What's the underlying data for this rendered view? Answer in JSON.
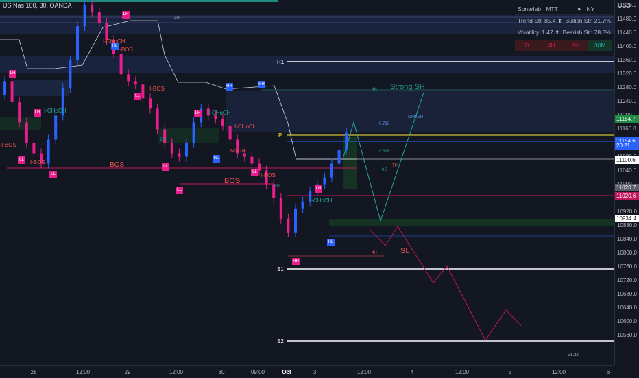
{
  "symbol": "US Nas 100, 30, OANDA",
  "currency": "USD",
  "price_ticks": [
    "11520.0",
    "11480.0",
    "11440.0",
    "11400.0",
    "11360.0",
    "11320.0",
    "11280.0",
    "11240.0",
    "11200.0",
    "11160.0",
    "11120.0",
    "11080.0",
    "11040.0",
    "11000.0",
    "10960.0",
    "10920.0",
    "10880.0",
    "10840.0",
    "10800.0",
    "10760.0",
    "10720.0",
    "10680.0",
    "10640.0",
    "10600.0",
    "10560.0"
  ],
  "price_labels": [
    {
      "text": "11184.7",
      "bg": "#1e8a42",
      "fg": "#ffffff"
    },
    {
      "text": "11154.6",
      "bg": "#2962ff",
      "fg": "#ffffff"
    },
    {
      "text": "20:21",
      "bg": "#2962ff",
      "fg": "#ffffff"
    },
    {
      "text": "11100.6",
      "bg": "#ffffff",
      "fg": "#131722"
    },
    {
      "text": "11020.7",
      "bg": "#5d606b",
      "fg": "#ffffff"
    },
    {
      "text": "11020.6",
      "bg": "#c2185b",
      "fg": "#ffffff"
    },
    {
      "text": "10934.4",
      "bg": "#ffffff",
      "fg": "#131722"
    }
  ],
  "time_ticks": [
    "28",
    "12:00",
    "29",
    "12:00",
    "30",
    "09:00",
    "Oct",
    "3",
    "12:00",
    "4",
    "12:00",
    "5",
    "12:00",
    "6"
  ],
  "stats": {
    "row1": [
      "Sonarlab",
      "MTT",
      "",
      "NY"
    ],
    "row2": [
      "Trend Str",
      "85.4 ⬆",
      "Bullish Str",
      "21.7%"
    ],
    "row3": [
      "Volatility",
      "1.47 ⬆",
      "Bearish Str",
      "78.3%"
    ],
    "timeframes": [
      "D",
      "4H",
      "1H",
      "30M"
    ]
  },
  "levels": {
    "r1": "R1",
    "s1": "S1",
    "s2": "S2",
    "p": "P"
  },
  "annotations": {
    "strong_sh": "Strong SH",
    "bos_big": "BOS",
    "bos_left": "BOS",
    "sl": "SL",
    "ichoch_top": "I-CHoCH",
    "ibos_top": "I-BOS",
    "ibos_left": "I-BOS",
    "ibos_left2": "I-BOS",
    "ichoch_left": "I-CHoCH",
    "ichoch_mid": "I-CHoCH",
    "ichoch_mid2": "I-CHoCH",
    "ibos_mid": "I-BOS",
    "ibos_mid2": "I-BOS",
    "ichoch_right": "I-CHoCH",
    "bos_small": "BOS (H)",
    "ep": "EP",
    "ep2": "EP",
    "fib_786": "0.786",
    "fib_618": "0.618",
    "fib_5": "0.5",
    "tp": "TP",
    "tf_4h": "4H",
    "tf_4h2": "4H",
    "tf_4h3": "4H",
    "choch_right": "CHOCH"
  },
  "swings": {
    "lh": "LH",
    "hh": "HH",
    "hl": "HL",
    "ll": "LL",
    "lh2": "LH",
    "ll2": "LL",
    "lh3": "LH",
    "hl2": "HL",
    "hh2": "HH",
    "hh3": "HH",
    "ll3": "LL",
    "lh4": "LH",
    "ll4": "LL",
    "lh5": "LH",
    "hl3": "HL",
    "ll5": "LL",
    "ll6": "LL"
  },
  "version": "V1.22",
  "chart_data": {
    "type": "candlestick",
    "instrument": "US Nas 100",
    "timeframe": "30",
    "ylim": [
      10560,
      11560
    ],
    "closes_approx": [
      11300,
      11240,
      11180,
      11120,
      11090,
      11060,
      11130,
      11200,
      11280,
      11360,
      11460,
      11520,
      11500,
      11470,
      11420,
      11380,
      11320,
      11300,
      11290,
      11250,
      11220,
      11160,
      11120,
      11090,
      11080,
      11120,
      11180,
      11220,
      11200,
      11190,
      11170,
      11130,
      11090,
      11080,
      11060,
      11040,
      11000,
      10960,
      10900,
      10860,
      10930,
      10950,
      10980,
      11000,
      11020,
      11060,
      11100,
      11150
    ]
  }
}
